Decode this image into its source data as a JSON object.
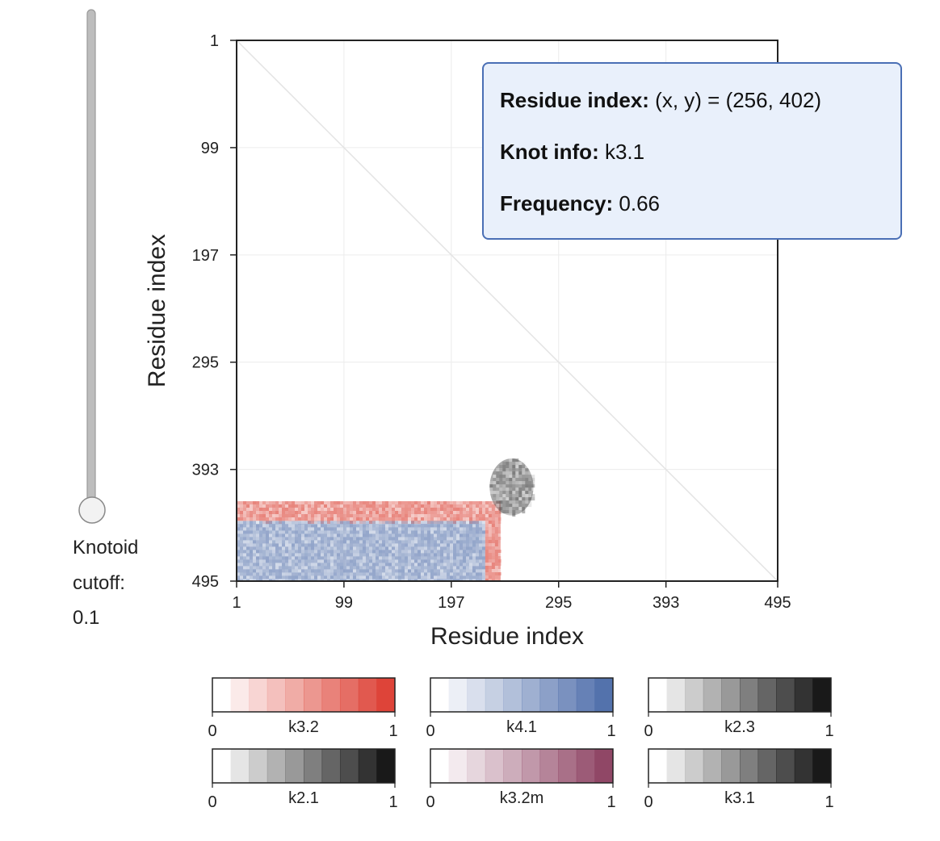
{
  "slider": {
    "label_line1": "Knotoid",
    "label_line2": "cutoff:",
    "value_text": "0.1",
    "value": 0.1,
    "track_color": "#bdbdbd",
    "handle_color": "#f2f2f2"
  },
  "tooltip": {
    "rows": [
      {
        "key": "Residue index:",
        "value": "(x, y) = (256, 402)"
      },
      {
        "key": "Knot info:",
        "value": "k3.1"
      },
      {
        "key": "Frequency:",
        "value": "0.66"
      }
    ],
    "background": "#e9f0fb",
    "border_color": "#4a6fb5"
  },
  "chart_data": {
    "type": "heatmap",
    "xlabel": "Residue index",
    "ylabel": "Residue index",
    "xlim": [
      1,
      495
    ],
    "ylim": [
      1,
      495
    ],
    "y_inverted": true,
    "x_ticks": [
      "1",
      "99",
      "197",
      "295",
      "393",
      "495"
    ],
    "y_ticks": [
      "1",
      "99",
      "197",
      "295",
      "393",
      "495"
    ],
    "grid": true,
    "diagonal_line": true,
    "regions": [
      {
        "knot": "k4.1",
        "x": [
          1,
          228
        ],
        "y": [
          440,
          495
        ],
        "color": "#6e86b8"
      },
      {
        "knot": "k3.2",
        "x": [
          1,
          228
        ],
        "y": [
          422,
          440
        ],
        "color": "#e05a4e"
      },
      {
        "knot": "k3.2",
        "x": [
          228,
          242
        ],
        "y": [
          422,
          495
        ],
        "color": "#e05a4e"
      },
      {
        "knot": "k3.1",
        "x": [
          232,
          272
        ],
        "y": [
          383,
          435
        ],
        "color": "#444444"
      }
    ],
    "colorbars": [
      {
        "name": "k3.2",
        "min": "0",
        "max": "1",
        "color": "#dc3a2e"
      },
      {
        "name": "k4.1",
        "min": "0",
        "max": "1",
        "color": "#4a6aa8"
      },
      {
        "name": "k2.3",
        "min": "0",
        "max": "1",
        "color": "#0d0d0d"
      },
      {
        "name": "k2.1",
        "min": "0",
        "max": "1",
        "color": "#0d0d0d"
      },
      {
        "name": "k3.2m",
        "min": "0",
        "max": "1",
        "color": "#8a3d5e"
      },
      {
        "name": "k3.1",
        "min": "0",
        "max": "1",
        "color": "#0d0d0d"
      }
    ]
  }
}
